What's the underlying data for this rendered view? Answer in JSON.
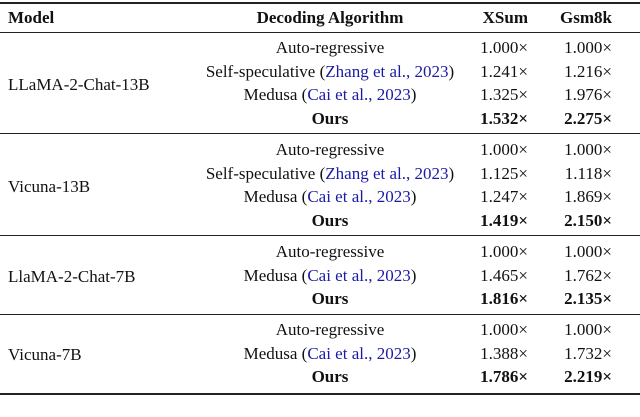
{
  "headers": {
    "model": "Model",
    "algorithm": "Decoding Algorithm",
    "xsum": "XSum",
    "gsm8k": "Gsm8k"
  },
  "groups": [
    {
      "model": "LLaMA-2-Chat-13B",
      "rows": [
        {
          "alg": "Auto-regressive",
          "cite": "",
          "xsum": "1.000×",
          "gsm": "1.000×",
          "bold": false
        },
        {
          "alg": "Self-speculative (",
          "cite": "Zhang et al., 2023",
          "xsum": "1.241×",
          "gsm": "1.216×",
          "bold": false
        },
        {
          "alg": "Medusa (",
          "cite": "Cai et al., 2023",
          "xsum": "1.325×",
          "gsm": "1.976×",
          "bold": false
        },
        {
          "alg": "Ours",
          "cite": "",
          "xsum": "1.532×",
          "gsm": "2.275×",
          "bold": true
        }
      ]
    },
    {
      "model": "Vicuna-13B",
      "rows": [
        {
          "alg": "Auto-regressive",
          "cite": "",
          "xsum": "1.000×",
          "gsm": "1.000×",
          "bold": false
        },
        {
          "alg": "Self-speculative (",
          "cite": "Zhang et al., 2023",
          "xsum": "1.125×",
          "gsm": "1.118×",
          "bold": false
        },
        {
          "alg": "Medusa (",
          "cite": "Cai et al., 2023",
          "xsum": "1.247×",
          "gsm": "1.869×",
          "bold": false
        },
        {
          "alg": "Ours",
          "cite": "",
          "xsum": "1.419×",
          "gsm": "2.150×",
          "bold": true
        }
      ]
    },
    {
      "model": "LlaMA-2-Chat-7B",
      "rows": [
        {
          "alg": "Auto-regressive",
          "cite": "",
          "xsum": "1.000×",
          "gsm": "1.000×",
          "bold": false
        },
        {
          "alg": "Medusa (",
          "cite": "Cai et al., 2023",
          "xsum": "1.465×",
          "gsm": "1.762×",
          "bold": false
        },
        {
          "alg": "Ours",
          "cite": "",
          "xsum": "1.816×",
          "gsm": "2.135×",
          "bold": true
        }
      ]
    },
    {
      "model": "Vicuna-7B",
      "rows": [
        {
          "alg": "Auto-regressive",
          "cite": "",
          "xsum": "1.000×",
          "gsm": "1.000×",
          "bold": false
        },
        {
          "alg": "Medusa (",
          "cite": "Cai et al., 2023",
          "xsum": "1.388×",
          "gsm": "1.732×",
          "bold": false
        },
        {
          "alg": "Ours",
          "cite": "",
          "xsum": "1.786×",
          "gsm": "2.219×",
          "bold": true
        }
      ]
    }
  ]
}
